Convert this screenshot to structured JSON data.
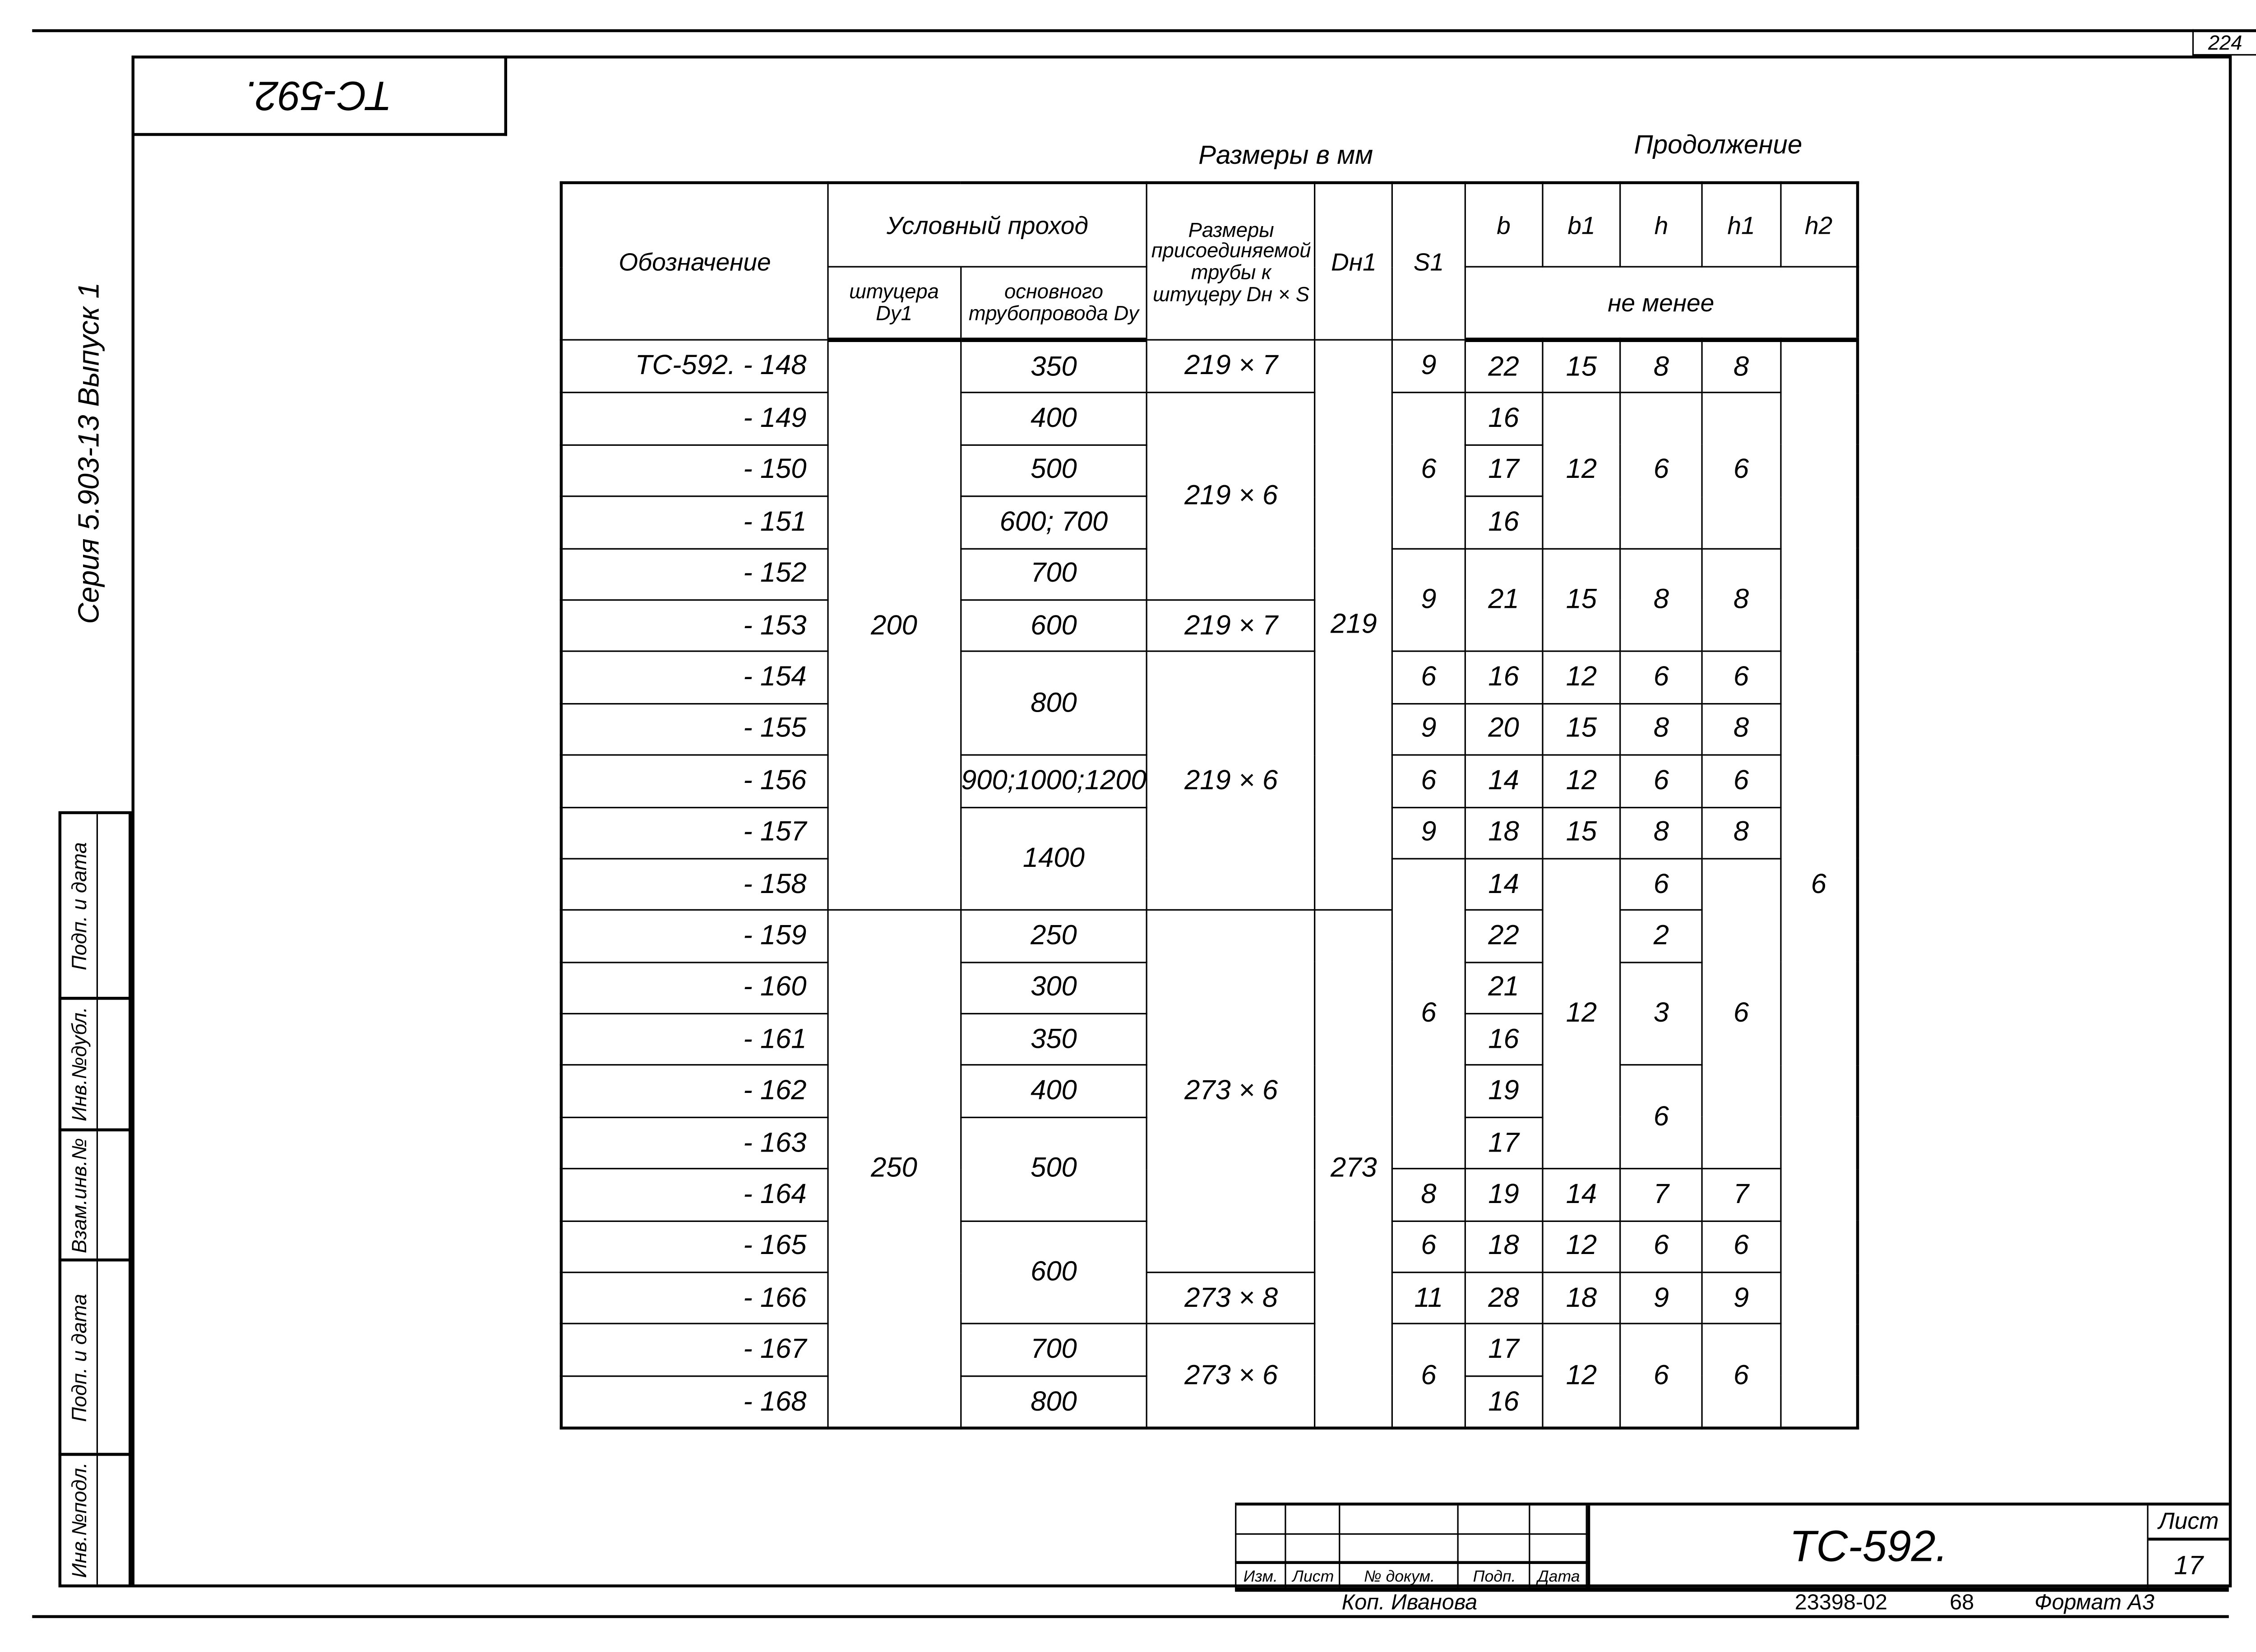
{
  "header": {
    "corner_code": "ТС-592.",
    "sheet_number": "224",
    "series": "Серия 5.903-13 Выпуск 1",
    "units_caption": "Размеры в мм",
    "continuation_caption": "Продолжение"
  },
  "left_stamp": [
    "Подп. и дата",
    "Инв.№дубл.",
    "Взам.инв.№",
    "Подп. и дата",
    "Инв.№подл."
  ],
  "table": {
    "headers": {
      "designation": "Обозначение",
      "nominal_bore": "Условный проход",
      "fitting": "штуцера Dy1",
      "main_pipeline": "основного трубопровода Dy",
      "pipe_size": "Размеры присоединяемой трубы к штуцеру Dн × S",
      "dn1": "Dн1",
      "s1": "S1",
      "b": "b",
      "b1": "b1",
      "h": "h",
      "h1": "h1",
      "h2": "h2",
      "not_less": "не менее"
    },
    "designations": [
      "ТС-592. - 148",
      "- 149",
      "- 150",
      "- 151",
      "- 152",
      "- 153",
      "- 154",
      "- 155",
      "- 156",
      "- 157",
      "- 158",
      "- 159",
      "- 160",
      "- 161",
      "- 162",
      "- 163",
      "- 164",
      "- 165",
      "- 166",
      "- 167",
      "- 168"
    ],
    "columns": {
      "dy1": [
        {
          "v": "200",
          "span": 11
        },
        {
          "v": "250",
          "span": 10
        }
      ],
      "dy": [
        {
          "v": "350",
          "span": 1
        },
        {
          "v": "400",
          "span": 1
        },
        {
          "v": "500",
          "span": 1
        },
        {
          "v": "600; 700",
          "span": 1
        },
        {
          "v": "700",
          "span": 1
        },
        {
          "v": "600",
          "span": 1
        },
        {
          "v": "800",
          "span": 2
        },
        {
          "v": "900;1000;1200",
          "span": 1
        },
        {
          "v": "1400",
          "span": 2
        },
        {
          "v": "250",
          "span": 1
        },
        {
          "v": "300",
          "span": 1
        },
        {
          "v": "350",
          "span": 1
        },
        {
          "v": "400",
          "span": 1
        },
        {
          "v": "500",
          "span": 2
        },
        {
          "v": "600",
          "span": 2
        },
        {
          "v": "700",
          "span": 1
        },
        {
          "v": "800",
          "span": 1
        }
      ],
      "dns": [
        {
          "v": "219 × 7",
          "span": 1
        },
        {
          "v": "219 × 6",
          "span": 4
        },
        {
          "v": "219 × 7",
          "span": 1
        },
        {
          "v": "219 × 6",
          "span": 5
        },
        {
          "v": "273 × 6",
          "span": 7
        },
        {
          "v": "273 × 8",
          "span": 1
        },
        {
          "v": "273 × 6",
          "span": 2
        }
      ],
      "dn1": [
        {
          "v": "219",
          "span": 11
        },
        {
          "v": "273",
          "span": 10
        }
      ],
      "s1": [
        {
          "v": "9",
          "span": 1
        },
        {
          "v": "6",
          "span": 3
        },
        {
          "v": "9",
          "span": 2
        },
        {
          "v": "6",
          "span": 1
        },
        {
          "v": "9",
          "span": 1
        },
        {
          "v": "6",
          "span": 1
        },
        {
          "v": "9",
          "span": 1
        },
        {
          "v": "6",
          "span": 6
        },
        {
          "v": "8",
          "span": 1
        },
        {
          "v": "6",
          "span": 1
        },
        {
          "v": "11",
          "span": 1
        },
        {
          "v": "6",
          "span": 2
        }
      ],
      "b": [
        {
          "v": "22",
          "span": 1
        },
        {
          "v": "16",
          "span": 1
        },
        {
          "v": "17",
          "span": 1
        },
        {
          "v": "16",
          "span": 1
        },
        {
          "v": "21",
          "span": 2
        },
        {
          "v": "16",
          "span": 1
        },
        {
          "v": "20",
          "span": 1
        },
        {
          "v": "14",
          "span": 1
        },
        {
          "v": "18",
          "span": 1
        },
        {
          "v": "14",
          "span": 1
        },
        {
          "v": "22",
          "span": 1
        },
        {
          "v": "21",
          "span": 1
        },
        {
          "v": "16",
          "span": 1
        },
        {
          "v": "19",
          "span": 1
        },
        {
          "v": "17",
          "span": 1
        },
        {
          "v": "19",
          "span": 1
        },
        {
          "v": "18",
          "span": 1
        },
        {
          "v": "28",
          "span": 1
        },
        {
          "v": "17",
          "span": 1
        },
        {
          "v": "16",
          "span": 1
        }
      ],
      "b1": [
        {
          "v": "15",
          "span": 1
        },
        {
          "v": "12",
          "span": 3
        },
        {
          "v": "15",
          "span": 2
        },
        {
          "v": "12",
          "span": 1
        },
        {
          "v": "15",
          "span": 1
        },
        {
          "v": "12",
          "span": 1
        },
        {
          "v": "15",
          "span": 1
        },
        {
          "v": "12",
          "span": 6
        },
        {
          "v": "14",
          "span": 1
        },
        {
          "v": "12",
          "span": 1
        },
        {
          "v": "18",
          "span": 1
        },
        {
          "v": "12",
          "span": 2
        }
      ],
      "h": [
        {
          "v": "8",
          "span": 1
        },
        {
          "v": "6",
          "span": 3
        },
        {
          "v": "8",
          "span": 2
        },
        {
          "v": "6",
          "span": 1
        },
        {
          "v": "8",
          "span": 1
        },
        {
          "v": "6",
          "span": 1
        },
        {
          "v": "8",
          "span": 1
        },
        {
          "v": "6",
          "span": 1
        },
        {
          "v": "2",
          "span": 1
        },
        {
          "v": "3",
          "span": 2
        },
        {
          "v": "6",
          "span": 2
        },
        {
          "v": "7",
          "span": 1
        },
        {
          "v": "6",
          "span": 1
        },
        {
          "v": "9",
          "span": 1
        },
        {
          "v": "6",
          "span": 2
        }
      ],
      "h1": [
        {
          "v": "8",
          "span": 1
        },
        {
          "v": "6",
          "span": 3
        },
        {
          "v": "8",
          "span": 2
        },
        {
          "v": "6",
          "span": 1
        },
        {
          "v": "8",
          "span": 1
        },
        {
          "v": "6",
          "span": 1
        },
        {
          "v": "8",
          "span": 1
        },
        {
          "v": "6",
          "span": 6
        },
        {
          "v": "7",
          "span": 1
        },
        {
          "v": "6",
          "span": 1
        },
        {
          "v": "9",
          "span": 1
        },
        {
          "v": "6",
          "span": 2
        }
      ],
      "h2": [
        {
          "v": "6",
          "span": 21
        }
      ]
    }
  },
  "title_block": {
    "labels": [
      "Изм.",
      "Лист",
      "№ докум.",
      "Подп.",
      "Дата"
    ],
    "title": "ТС-592.",
    "sheet_label": "Лист",
    "sheet_value": "17",
    "copied_by": "Коп. Иванова",
    "order_no": "23398-02",
    "code": "68",
    "format": "Формат А3"
  }
}
